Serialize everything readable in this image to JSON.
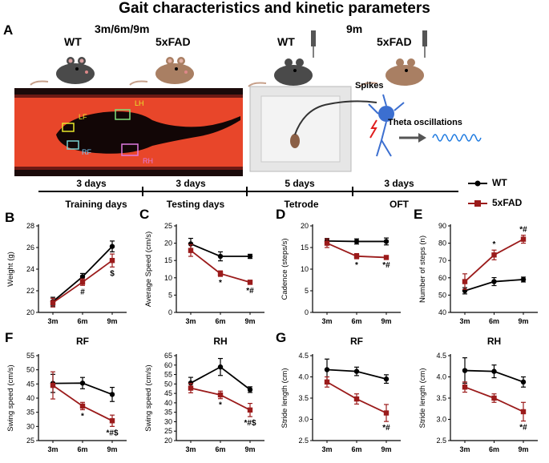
{
  "title": "Gait characteristics and kinetic parameters",
  "panel_a": {
    "label": "A",
    "group1_header": "3m/6m/9m",
    "group2_header": "9m",
    "mouse_labels": [
      "WT",
      "5xFAD",
      "WT",
      "5xFAD"
    ],
    "paw_labels": [
      "LF",
      "LH",
      "RF",
      "RH"
    ],
    "spikes_label": "Spikes",
    "theta_label": "Theta oscillations",
    "days": [
      "3 days",
      "3 days",
      "5 days",
      "3 days"
    ],
    "timeline": [
      "Training days",
      "Testing days",
      "Tetrode",
      "OFT"
    ]
  },
  "legend": {
    "wt": "WT",
    "fad": "5xFAD"
  },
  "colors": {
    "wt": "#000000",
    "fad": "#9b1b1b",
    "red_bg": "#e8462a",
    "neuron": "#3c6fd0"
  },
  "chart_data": [
    {
      "id": "B",
      "type": "line",
      "title": "",
      "xlabel": "",
      "ylabel": "Weight (g)",
      "categories": [
        "3m",
        "6m",
        "9m"
      ],
      "ylim": [
        20,
        28
      ],
      "yticks": [
        20,
        22,
        24,
        26,
        28
      ],
      "series": [
        {
          "name": "WT",
          "values": [
            21.0,
            23.3,
            26.1
          ],
          "errors": [
            0.4,
            0.3,
            0.5
          ]
        },
        {
          "name": "5xFAD",
          "values": [
            20.9,
            22.8,
            24.8
          ],
          "errors": [
            0.4,
            0.3,
            0.6
          ]
        }
      ],
      "annotations": [
        {
          "x": "6m",
          "text": "#"
        },
        {
          "x": "9m",
          "text": "$"
        }
      ]
    },
    {
      "id": "C",
      "type": "line",
      "title": "",
      "xlabel": "",
      "ylabel": "Average Speed (cm/s)",
      "categories": [
        "3m",
        "6m",
        "9m"
      ],
      "ylim": [
        0,
        25
      ],
      "yticks": [
        0,
        5,
        10,
        15,
        20,
        25
      ],
      "series": [
        {
          "name": "WT",
          "values": [
            19.8,
            16.2,
            16.2
          ],
          "errors": [
            1.6,
            1.3,
            0.6
          ]
        },
        {
          "name": "5xFAD",
          "values": [
            17.9,
            11.2,
            8.7
          ],
          "errors": [
            1.7,
            0.8,
            0.6
          ]
        }
      ],
      "annotations": [
        {
          "x": "6m",
          "text": "*"
        },
        {
          "x": "9m",
          "text": "*#"
        }
      ]
    },
    {
      "id": "D",
      "type": "line",
      "title": "",
      "xlabel": "",
      "ylabel": "Cadence (steps/s)",
      "categories": [
        "3m",
        "6m",
        "9m"
      ],
      "ylim": [
        0,
        20
      ],
      "yticks": [
        0,
        5,
        10,
        15,
        20
      ],
      "series": [
        {
          "name": "WT",
          "values": [
            16.5,
            16.4,
            16.4
          ],
          "errors": [
            0.6,
            0.6,
            0.8
          ]
        },
        {
          "name": "5xFAD",
          "values": [
            16.0,
            13.0,
            12.7
          ],
          "errors": [
            1.0,
            0.6,
            0.3
          ]
        }
      ],
      "annotations": [
        {
          "x": "6m",
          "text": "*"
        },
        {
          "x": "9m",
          "text": "*#"
        }
      ]
    },
    {
      "id": "E",
      "type": "line",
      "title": "",
      "xlabel": "",
      "ylabel": "Number of steps (n)",
      "categories": [
        "3m",
        "6m",
        "9m"
      ],
      "ylim": [
        40,
        90
      ],
      "yticks": [
        40,
        50,
        60,
        70,
        80,
        90
      ],
      "series": [
        {
          "name": "WT",
          "values": [
            52.5,
            57.8,
            59.0
          ],
          "errors": [
            1.8,
            2.3,
            1.4
          ]
        },
        {
          "name": "5xFAD",
          "values": [
            57.8,
            73.2,
            82.3
          ],
          "errors": [
            4.5,
            2.8,
            2.3
          ]
        }
      ],
      "annotations": [
        {
          "x": "6m",
          "text": "*"
        },
        {
          "x": "9m",
          "text": "*#"
        }
      ]
    },
    {
      "id": "F-RF",
      "type": "line",
      "title": "RF",
      "xlabel": "",
      "ylabel": "Swing speed (cm/s)",
      "categories": [
        "3m",
        "6m",
        "9m"
      ],
      "ylim": [
        25,
        55
      ],
      "yticks": [
        25,
        30,
        35,
        40,
        45,
        50,
        55
      ],
      "series": [
        {
          "name": "WT",
          "values": [
            45.2,
            45.3,
            41.3
          ],
          "errors": [
            3.2,
            2.0,
            2.5
          ]
        },
        {
          "name": "5xFAD",
          "values": [
            44.5,
            37.2,
            32.0
          ],
          "errors": [
            4.8,
            1.3,
            2.0
          ]
        }
      ],
      "annotations": [
        {
          "x": "6m",
          "text": "*"
        },
        {
          "x": "9m",
          "text": "*#$"
        }
      ]
    },
    {
      "id": "F-RH",
      "type": "line",
      "title": "RH",
      "xlabel": "",
      "ylabel": "Swing speed (cm/s)",
      "categories": [
        "3m",
        "6m",
        "9m"
      ],
      "ylim": [
        20,
        65
      ],
      "yticks": [
        20,
        25,
        30,
        35,
        40,
        45,
        50,
        55,
        60,
        65
      ],
      "series": [
        {
          "name": "WT",
          "values": [
            50.5,
            59.0,
            47.0
          ],
          "errors": [
            3.0,
            4.5,
            1.5
          ]
        },
        {
          "name": "5xFAD",
          "values": [
            47.8,
            44.2,
            36.2
          ],
          "errors": [
            2.5,
            2.0,
            3.5
          ]
        }
      ],
      "annotations": [
        {
          "x": "6m",
          "text": "*"
        },
        {
          "x": "9m",
          "text": "*#$"
        }
      ]
    },
    {
      "id": "G-RF",
      "type": "line",
      "title": "RF",
      "xlabel": "",
      "ylabel": "Stride length (cm)",
      "categories": [
        "3m",
        "6m",
        "9m"
      ],
      "ylim": [
        2.5,
        4.5
      ],
      "yticks": [
        2.5,
        3.0,
        3.5,
        4.0,
        4.5
      ],
      "series": [
        {
          "name": "WT",
          "values": [
            4.17,
            4.13,
            3.95
          ],
          "errors": [
            0.25,
            0.1,
            0.1
          ]
        },
        {
          "name": "5xFAD",
          "values": [
            3.88,
            3.48,
            3.15
          ],
          "errors": [
            0.12,
            0.12,
            0.2
          ]
        }
      ],
      "annotations": [
        {
          "x": "9m",
          "text": "*#"
        }
      ]
    },
    {
      "id": "G-RH",
      "type": "line",
      "title": "RH",
      "xlabel": "",
      "ylabel": "Stride length (cm)",
      "categories": [
        "3m",
        "6m",
        "9m"
      ],
      "ylim": [
        2.5,
        4.5
      ],
      "yticks": [
        2.5,
        3.0,
        3.5,
        4.0,
        4.5
      ],
      "series": [
        {
          "name": "WT",
          "values": [
            4.15,
            4.13,
            3.88
          ],
          "errors": [
            0.3,
            0.15,
            0.12
          ]
        },
        {
          "name": "5xFAD",
          "values": [
            3.76,
            3.5,
            3.18
          ],
          "errors": [
            0.12,
            0.1,
            0.22
          ]
        }
      ],
      "annotations": [
        {
          "x": "9m",
          "text": "*#"
        }
      ]
    }
  ]
}
